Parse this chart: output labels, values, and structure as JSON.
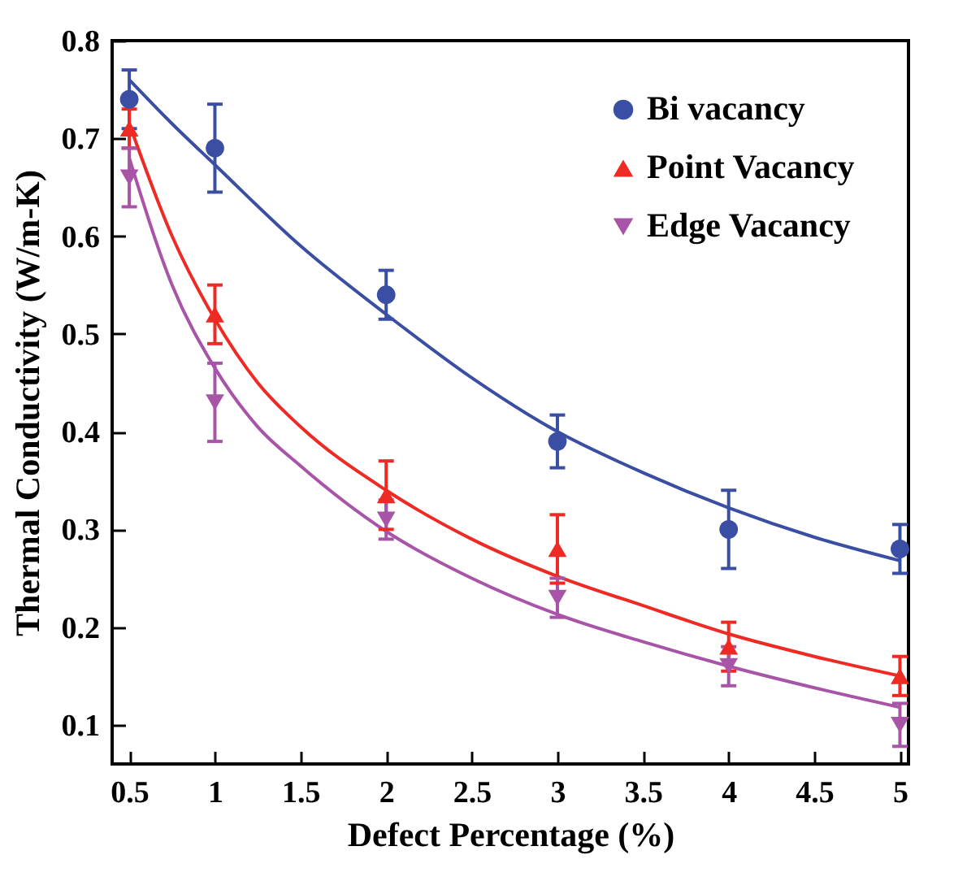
{
  "chart_data": {
    "type": "scatter",
    "xlabel": "Defect Percentage (%)",
    "ylabel": "Thermal Conductivity (W/m-K)",
    "xlim": [
      0.4,
      5.05
    ],
    "xticks": [
      0.5,
      1,
      1.5,
      2,
      2.5,
      3,
      3.5,
      4,
      4.5,
      5
    ],
    "ylim": [
      0.06,
      0.8
    ],
    "yticks": [
      0.1,
      0.2,
      0.3,
      0.4,
      0.5,
      0.6,
      0.7,
      0.8
    ],
    "grid": false,
    "legend": "top right",
    "series": [
      {
        "name": "Bi vacancy",
        "color": "#3a4ea3",
        "marker": "circle",
        "x": [
          0.5,
          1,
          2,
          3,
          4,
          5
        ],
        "values": [
          0.74,
          0.69,
          0.54,
          0.39,
          0.3,
          0.28
        ],
        "errors": [
          0.03,
          0.045,
          0.025,
          0.027,
          0.04,
          0.025
        ]
      },
      {
        "name": "Point Vacancy",
        "color": "#ee2a24",
        "marker": "triangle",
        "x": [
          0.5,
          1,
          2,
          3,
          4,
          5
        ],
        "values": [
          0.71,
          0.52,
          0.335,
          0.28,
          0.18,
          0.15
        ],
        "errors": [
          0.02,
          0.03,
          0.035,
          0.035,
          0.025,
          0.02
        ]
      },
      {
        "name": "Edge Vacancy",
        "color": "#a855a8",
        "marker": "triangle-down",
        "x": [
          0.5,
          1,
          2,
          3,
          4,
          5
        ],
        "values": [
          0.66,
          0.43,
          0.31,
          0.23,
          0.16,
          0.1
        ],
        "errors": [
          0.03,
          0.04,
          0.02,
          0.02,
          0.02,
          0.022
        ]
      },
      {
        "type": "line",
        "color": "#3a4ea3",
        "x": [
          0.5,
          0.75,
          1,
          1.5,
          2,
          2.5,
          3,
          3.5,
          4,
          4.5,
          5
        ],
        "values": [
          0.76,
          0.715,
          0.673,
          0.59,
          0.52,
          0.455,
          0.4,
          0.358,
          0.322,
          0.292,
          0.268
        ]
      },
      {
        "type": "line",
        "color": "#ee2a24",
        "x": [
          0.5,
          0.75,
          1,
          1.25,
          1.5,
          2,
          2.5,
          3,
          3.5,
          4,
          4.5,
          5
        ],
        "values": [
          0.715,
          0.6,
          0.515,
          0.45,
          0.405,
          0.34,
          0.29,
          0.252,
          0.222,
          0.193,
          0.17,
          0.15
        ]
      },
      {
        "type": "line",
        "color": "#a855a8",
        "x": [
          0.5,
          0.75,
          1,
          1.25,
          1.5,
          2,
          2.5,
          3,
          3.5,
          4,
          4.5,
          5
        ],
        "values": [
          0.68,
          0.55,
          0.465,
          0.405,
          0.365,
          0.298,
          0.25,
          0.213,
          0.185,
          0.16,
          0.138,
          0.118
        ]
      }
    ]
  }
}
